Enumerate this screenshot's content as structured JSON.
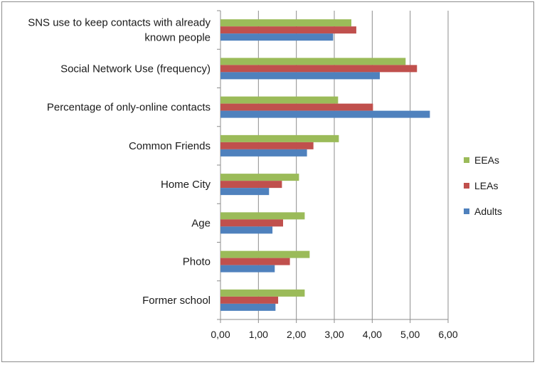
{
  "chart_data": {
    "type": "bar",
    "orientation": "horizontal",
    "categories": [
      "SNS use to keep contacts with already known people",
      "Social Network Use (frequency)",
      "Percentage of only-online contacts",
      "Common Friends",
      "Home City",
      "Age",
      "Photo",
      "Former school"
    ],
    "category_lines": [
      [
        "SNS use to keep contacts with already",
        "known people"
      ],
      [
        "Social Network Use (frequency)"
      ],
      [
        "Percentage of only-online contacts"
      ],
      [
        "Common Friends"
      ],
      [
        "Home City"
      ],
      [
        "Age"
      ],
      [
        "Photo"
      ],
      [
        "Former school"
      ]
    ],
    "series": [
      {
        "name": "EEAs",
        "color": "#9bbb59",
        "values": [
          3.45,
          4.88,
          3.1,
          3.12,
          2.07,
          2.22,
          2.35,
          2.22
        ]
      },
      {
        "name": "LEAs",
        "color": "#c0504d",
        "values": [
          3.58,
          5.18,
          4.02,
          2.45,
          1.62,
          1.65,
          1.83,
          1.52
        ]
      },
      {
        "name": "Adults",
        "color": "#4f81bd",
        "values": [
          2.97,
          4.2,
          5.52,
          2.28,
          1.28,
          1.37,
          1.43,
          1.45
        ]
      }
    ],
    "xlim": [
      0,
      6
    ],
    "xticks": [
      "0,00",
      "1,00",
      "2,00",
      "3,00",
      "4,00",
      "5,00",
      "6,00"
    ],
    "grid": true,
    "legend_position": "right",
    "legend": [
      "EEAs",
      "LEAs",
      "Adults"
    ]
  }
}
